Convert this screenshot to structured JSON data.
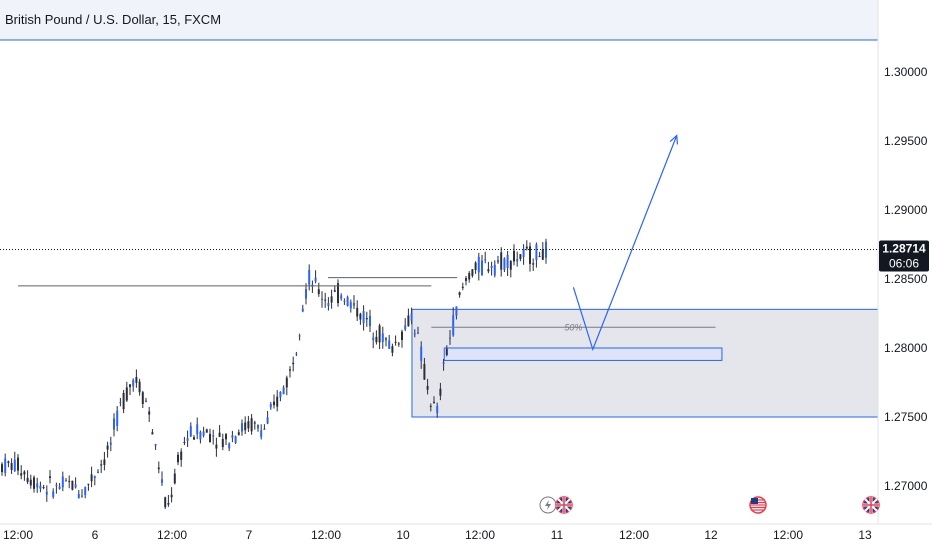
{
  "header": {
    "title": "British Pound / U.S. Dollar, 15, FXCM"
  },
  "price_badge": {
    "price": "1.28714",
    "countdown": "06:06"
  },
  "annotations": {
    "fib_label": "50%"
  },
  "colors": {
    "candle": "#2a2e39",
    "drawing_blue": "#2962ff",
    "zone_fill": "#e4e6eb",
    "grid_text": "#131722",
    "header_bg": "#f0f3fa"
  },
  "event_icons": [
    "lightning-icon",
    "uk-flag-icon",
    "us-flag-icon",
    "uk-flag-icon"
  ],
  "chart_data": {
    "type": "line",
    "title": "British Pound / U.S. Dollar, 15, FXCM",
    "xlabel": "",
    "ylabel": "",
    "x_ticks": [
      "12:00",
      "6",
      "12:00",
      "7",
      "12:00",
      "10",
      "12:00",
      "11",
      "12:00",
      "12",
      "12:00",
      "13"
    ],
    "y_ticks": [
      "1.30000",
      "1.29500",
      "1.29000",
      "1.28500",
      "1.28000",
      "1.27500",
      "1.27000"
    ],
    "ylim": [
      1.2674,
      1.303
    ],
    "last_price": 1.28714,
    "x": [
      "5 12:00",
      "5 14:00",
      "5 16:00",
      "5 18:00",
      "5 20:00",
      "5 22:00",
      "6 00:00",
      "6 02:00",
      "6 04:00",
      "6 06:00",
      "6 08:00",
      "6 10:00",
      "6 11:00",
      "6 12:00",
      "6 13:00",
      "6 14:00",
      "6 16:00",
      "6 18:00",
      "6 20:00",
      "6 22:00",
      "7 00:00",
      "7 02:00",
      "7 04:00",
      "7 06:00",
      "7 07:00",
      "7 08:00",
      "7 09:00",
      "7 10:00",
      "7 11:00",
      "7 12:00",
      "7 14:00",
      "7 16:00",
      "7 18:00",
      "7 20:00",
      "7 22:00",
      "10 00:00",
      "10 01:00",
      "10 02:00",
      "10 03:00",
      "10 04:00",
      "10 05:00",
      "10 06:00",
      "10 07:00",
      "10 08:00",
      "10 09:00",
      "10 10:00",
      "10 12:00",
      "10 14:00",
      "10 16:00",
      "10 18:00",
      "10 20:00",
      "10 22:00",
      "11 00:00",
      "11 01:00"
    ],
    "series": [
      {
        "values": [
          1.2715,
          1.2705,
          1.27,
          1.2698,
          1.2702,
          1.2695,
          1.271,
          1.2725,
          1.276,
          1.278,
          1.276,
          1.271,
          1.268,
          1.27,
          1.272,
          1.2735,
          1.274,
          1.2738,
          1.2732,
          1.274,
          1.2745,
          1.274,
          1.276,
          1.278,
          1.28,
          1.283,
          1.285,
          1.2845,
          1.2838,
          1.2835,
          1.284,
          1.283,
          1.282,
          1.281,
          1.28,
          1.2815,
          1.2825,
          1.2805,
          1.278,
          1.276,
          1.2752,
          1.279,
          1.281,
          1.283,
          1.2845,
          1.2855,
          1.286,
          1.2862,
          1.2864,
          1.2866,
          1.2868,
          1.287,
          1.2878,
          1.2871
        ]
      }
    ],
    "drawings": {
      "zone": {
        "from": "10 01:00",
        "to": "13 22:00",
        "low": 1.275,
        "high": 1.2828
      },
      "small_zone": {
        "from": "10 06:00",
        "to": "12 01:00",
        "low": 1.2791,
        "high": 1.28
      },
      "fib_line": {
        "from": "10 04:00",
        "to": "12 00:00",
        "price": 1.2815,
        "label": "50%"
      },
      "resistance_line": {
        "from": "5 12:00",
        "to": "10 04:00",
        "price": 1.2845
      },
      "resistance_line_upper": {
        "from": "7 12:00",
        "to": "10 08:00",
        "price": 1.2851
      },
      "projection_path": [
        {
          "x": "11 02:00",
          "price": 1.2844
        },
        {
          "x": "11 05:00",
          "price": 1.2799
        },
        {
          "x": "11 18:00",
          "price": 1.2954
        }
      ]
    }
  }
}
